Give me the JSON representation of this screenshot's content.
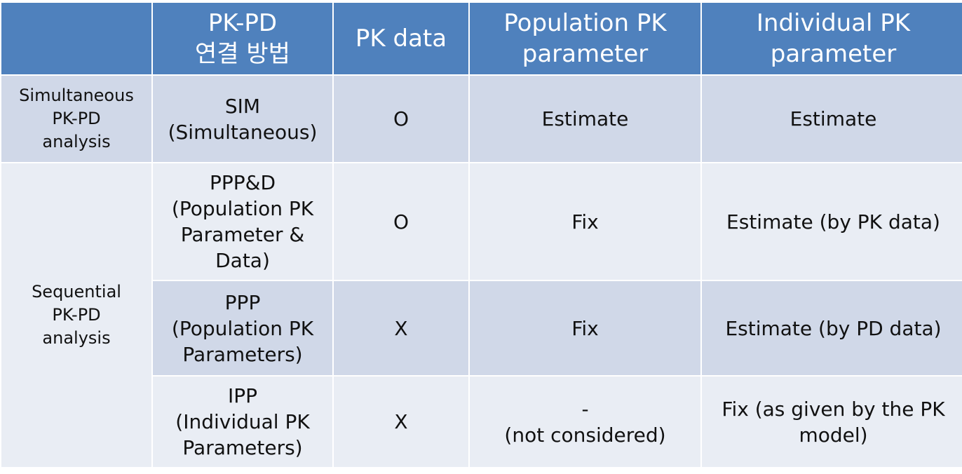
{
  "table": {
    "headers": [
      "",
      "PK-PD\n연결 방법",
      "PK data",
      "Population PK\nparameter",
      "Individual PK\nparameter"
    ],
    "groups": [
      {
        "label": "Simultaneous\nPK-PD\nanalysis"
      },
      {
        "label": "Sequential\nPK-PD\nanalysis"
      }
    ],
    "rows": [
      {
        "method": "SIM\n(Simultaneous)",
        "pk_data": "O",
        "pop_pk": "Estimate",
        "ind_pk": "Estimate"
      },
      {
        "method": "PPP&D\n(Population PK\nParameter &\nData)",
        "pk_data": "O",
        "pop_pk": "Fix",
        "ind_pk": "Estimate (by PK data)"
      },
      {
        "method": "PPP\n(Population PK\nParameters)",
        "pk_data": "X",
        "pop_pk": "Fix",
        "ind_pk": "Estimate (by PD data)"
      },
      {
        "method": "IPP\n(Individual PK\nParameters)",
        "pk_data": "X",
        "pop_pk": "-\n(not considered)",
        "ind_pk": "Fix (as given by the PK\nmodel)"
      }
    ]
  },
  "colors": {
    "header": "#4f81bd",
    "band_dark": "#d0d8e8",
    "band_light": "#e9edf4"
  }
}
